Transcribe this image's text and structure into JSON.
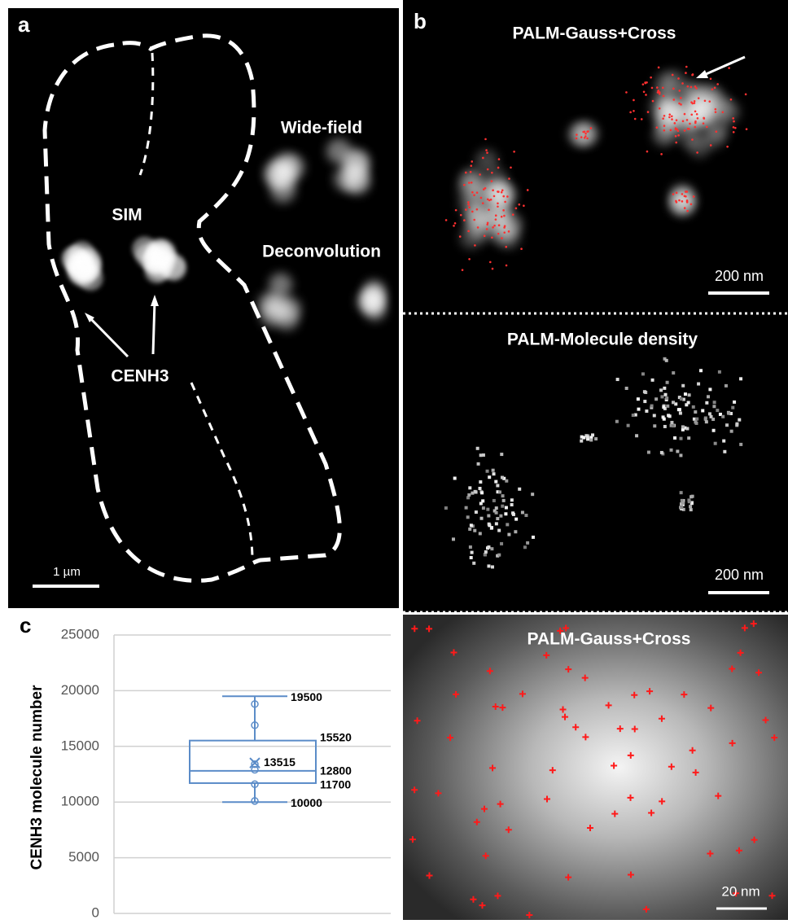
{
  "panel_a": {
    "label": "a",
    "wide_field": "Wide-field",
    "sim": "SIM",
    "deconvolution": "Deconvolution",
    "cenh3": "CENH3",
    "scale_bar": "1 µm"
  },
  "panel_b": {
    "label": "b",
    "top_title": "PALM-Gauss+Cross",
    "top_scale_bar": "200 nm",
    "middle_title": "PALM-Molecule density",
    "middle_scale_bar": "200 nm",
    "bottom_title": "PALM-Gauss+Cross",
    "bottom_scale_bar": "20 nm"
  },
  "chart_data": {
    "type": "box",
    "panel_label": "c",
    "ylabel": "CENH3 molecule number",
    "ylim": [
      0,
      25000
    ],
    "yticks": [
      0,
      5000,
      10000,
      15000,
      20000,
      25000
    ],
    "grid": true,
    "color": "#5b8cc8",
    "min": 10000,
    "q1": 11700,
    "median": 12800,
    "q3": 15520,
    "max": 19500,
    "mean": 13515,
    "points": [
      18800,
      16900,
      13400,
      12900,
      11600,
      10100
    ]
  }
}
